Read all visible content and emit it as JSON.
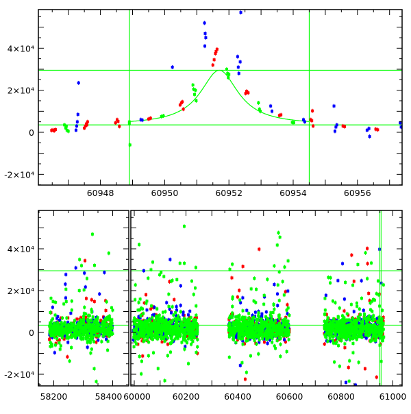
{
  "chart_data": [
    {
      "type": "scatter",
      "title": "",
      "xlabel": "",
      "ylabel": "",
      "xlim": [
        60946.1,
        60957.3
      ],
      "ylim": [
        -25000,
        57500
      ],
      "x_tick_labels": [
        "60948",
        "60950",
        "60952",
        "60954",
        "60956"
      ],
      "x_ticks": [
        60948,
        60950,
        60952,
        60954,
        60956
      ],
      "y_tick_labels": [
        "-2×10⁴",
        "0",
        "2×10⁴",
        "4×10⁴"
      ],
      "y_ticks": [
        -20000,
        0,
        20000,
        40000
      ],
      "grid": false,
      "colors": {
        "red": "#ff0000",
        "green": "#00ff00",
        "blue": "#0000ff"
      },
      "hlines": [
        3500,
        29500
      ],
      "vlines": [
        60948.9,
        60954.5
      ],
      "model": {
        "type": "line",
        "color": "#00ff00",
        "t0": 60951.7,
        "baseline": 3500,
        "peak": 29500,
        "tau": 0.72,
        "range": [
          60948.9,
          60954.5
        ]
      },
      "series": [
        {
          "name": "red",
          "points": [
            [
              60946.48,
              900
            ],
            [
              60946.52,
              1100
            ],
            [
              60946.56,
              700
            ],
            [
              60946.6,
              1300
            ],
            [
              60947.5,
              2000
            ],
            [
              60947.53,
              3000
            ],
            [
              60947.56,
              4000
            ],
            [
              60947.6,
              5000
            ],
            [
              60947.58,
              3500
            ],
            [
              60948.47,
              4500
            ],
            [
              60948.52,
              6000
            ],
            [
              60948.55,
              5200
            ],
            [
              60948.59,
              2800
            ],
            [
              60949.5,
              6300
            ],
            [
              60949.56,
              6700
            ],
            [
              60950.48,
              13000
            ],
            [
              60950.52,
              14000
            ],
            [
              60950.55,
              14500
            ],
            [
              60950.58,
              11000
            ],
            [
              60951.5,
              32000
            ],
            [
              60951.54,
              34500
            ],
            [
              60951.58,
              37500
            ],
            [
              60951.6,
              38500
            ],
            [
              60951.63,
              39500
            ],
            [
              60952.52,
              18500
            ],
            [
              60952.55,
              19500
            ],
            [
              60952.6,
              18800
            ],
            [
              60953.57,
              8000
            ],
            [
              60953.62,
              8300
            ],
            [
              60954.55,
              6000
            ],
            [
              60954.6,
              10200
            ],
            [
              60954.62,
              3000
            ],
            [
              60954.58,
              5500
            ],
            [
              60955.55,
              3000
            ],
            [
              60955.6,
              2700
            ],
            [
              60956.57,
              1500
            ],
            [
              60956.63,
              1200
            ]
          ]
        },
        {
          "name": "green",
          "points": [
            [
              60946.88,
              3500
            ],
            [
              60946.92,
              2000
            ],
            [
              60946.96,
              1000
            ],
            [
              60947.0,
              500
            ],
            [
              60946.94,
              2800
            ],
            [
              60948.9,
              4000
            ],
            [
              60948.9,
              5000
            ],
            [
              60948.92,
              -6000
            ],
            [
              60949.9,
              7500
            ],
            [
              60949.96,
              7800
            ],
            [
              60950.88,
              22500
            ],
            [
              60950.9,
              20500
            ],
            [
              60950.93,
              18000
            ],
            [
              60950.96,
              20000
            ],
            [
              60950.98,
              15000
            ],
            [
              60951.93,
              30000
            ],
            [
              60951.96,
              28000
            ],
            [
              60951.98,
              26000
            ],
            [
              60952.0,
              27500
            ],
            [
              60952.92,
              14000
            ],
            [
              60952.95,
              11000
            ],
            [
              60952.98,
              10000
            ],
            [
              60953.97,
              4700
            ],
            [
              60954.02,
              4600
            ]
          ]
        },
        {
          "name": "blue",
          "points": [
            [
              60947.24,
              1000
            ],
            [
              60947.26,
              3000
            ],
            [
              60947.28,
              5000
            ],
            [
              60947.3,
              8500
            ],
            [
              60947.32,
              23500
            ],
            [
              60949.26,
              6000
            ],
            [
              60949.3,
              5800
            ],
            [
              60950.24,
              31000
            ],
            [
              60951.24,
              52000
            ],
            [
              60951.26,
              47000
            ],
            [
              60951.28,
              45000
            ],
            [
              60951.25,
              41000
            ],
            [
              60952.27,
              36000
            ],
            [
              60952.29,
              31000
            ],
            [
              60952.31,
              28000
            ],
            [
              60952.35,
              33500
            ],
            [
              60952.37,
              57000
            ],
            [
              60953.3,
              12500
            ],
            [
              60953.34,
              10000
            ],
            [
              60954.32,
              6000
            ],
            [
              60954.36,
              5000
            ],
            [
              60955.27,
              12500
            ],
            [
              60955.3,
              500
            ],
            [
              60955.33,
              2500
            ],
            [
              60955.36,
              3500
            ],
            [
              60956.3,
              1000
            ],
            [
              60956.36,
              1800
            ],
            [
              60956.38,
              -2000
            ],
            [
              60957.33,
              4500
            ],
            [
              60957.36,
              2500
            ]
          ]
        }
      ]
    },
    {
      "type": "scatter",
      "title": "",
      "xlabel": "",
      "ylabel": "",
      "broken_x_axis": true,
      "xlim_segments": [
        [
          58150,
          58430
        ],
        [
          59987,
          61036
        ]
      ],
      "ylim": [
        -25000,
        57500
      ],
      "x_tick_labels": [
        "58200",
        "58400",
        "60000",
        "60200",
        "60400",
        "60600",
        "60800",
        "61000"
      ],
      "x_ticks": [
        58200,
        58400,
        60000,
        60200,
        60400,
        60600,
        60800,
        61000
      ],
      "y_tick_labels": [
        "-2×10⁴",
        "0",
        "2×10⁴",
        "4×10⁴"
      ],
      "y_ticks": [
        -20000,
        0,
        20000,
        40000
      ],
      "hlines": [
        3500,
        29500
      ],
      "vlines": [
        60948.9,
        60954.5
      ],
      "seasons": [
        {
          "start": 58185,
          "end": 58400,
          "count": 700,
          "core_mean": 1500,
          "core_sd": 2500,
          "outlier_sd": 15000
        },
        {
          "start": 59995,
          "end": 60245,
          "count": 900,
          "core_mean": 2000,
          "core_sd": 3000,
          "outlier_sd": 16000
        },
        {
          "start": 60365,
          "end": 60600,
          "count": 850,
          "core_mean": 1500,
          "core_sd": 2800,
          "outlier_sd": 15000
        },
        {
          "start": 60735,
          "end": 60965,
          "count": 850,
          "core_mean": 1800,
          "core_sd": 2800,
          "outlier_sd": 15000
        }
      ]
    }
  ]
}
